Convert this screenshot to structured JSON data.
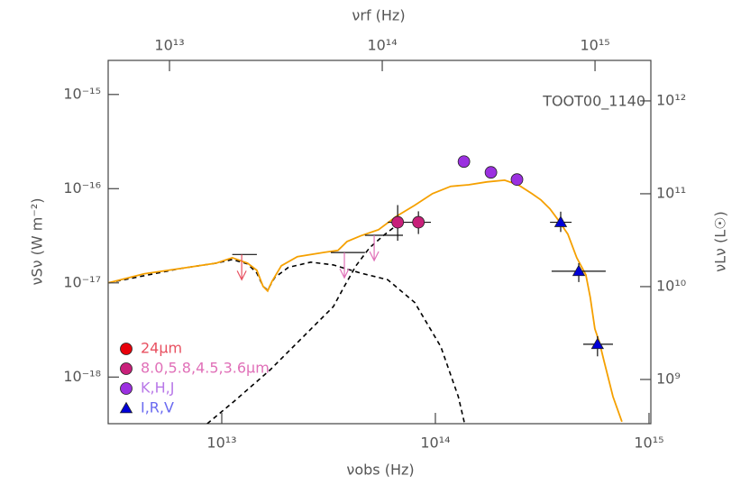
{
  "chart_data": {
    "type": "scatter",
    "annotation": "TOOT00_1140",
    "xlabel": "νobs (Hz)",
    "ylabel": "νSν (W m⁻²)",
    "y2label": "νLν (L☉)",
    "x2label": "νrf (Hz)",
    "xscale": "log",
    "yscale": "log",
    "xlim": [
      2940000000000.0,
      1020000000000000.0
    ],
    "xticks": [
      {
        "value": 10000000000000.0,
        "label": "10¹³"
      },
      {
        "value": 100000000000000.0,
        "label": "10¹⁴"
      },
      {
        "value": 1000000000000000.0,
        "label": "10¹⁵"
      }
    ],
    "ylim": [
      3.2e-19,
      2.3e-15
    ],
    "yticks": [
      {
        "value": 1e-18,
        "label": "10⁻¹⁸"
      },
      {
        "value": 1e-17,
        "label": "10⁻¹⁷"
      },
      {
        "value": 1e-16,
        "label": "10⁻¹⁶"
      },
      {
        "value": 1e-15,
        "label": "10⁻¹⁵"
      }
    ],
    "y2lim": [
      334000000.0,
      2730000000000.0
    ],
    "y2ticks": [
      {
        "value": 1000000000.0,
        "label": "10⁹"
      },
      {
        "value": 10000000000.0,
        "label": "10¹⁰"
      },
      {
        "value": 100000000000.0,
        "label": "10¹¹"
      },
      {
        "value": 1000000000000.0,
        "label": "10¹²"
      }
    ],
    "x2lim": [
      5150000000000.0,
      1830000000000000.0
    ],
    "x2ticks": [
      {
        "value": 10000000000000.0,
        "label": "10¹³"
      },
      {
        "value": 100000000000000.0,
        "label": "10¹⁴"
      },
      {
        "value": 1000000000000000.0,
        "label": "10¹⁵"
      }
    ],
    "series": [
      {
        "name": "24μm",
        "color": "#e8000b",
        "label_color": "#e85060",
        "marker": "circle",
        "x": [
          12400000000000.0
        ],
        "values": [
          2e-17
        ],
        "limits": [
          true
        ],
        "x_low": [
          11200000000000.0
        ],
        "x_high": [
          14600000000000.0
        ],
        "y_low": [
          null
        ],
        "y_high": [
          null
        ]
      },
      {
        "name": "8.0,5.8,4.5,3.6μm",
        "color": "#c8207a",
        "label_color": "#e070b8",
        "marker": "circle",
        "x": [
          37500000000000.0,
          51700000000000.0,
          66600000000000.0,
          83300000000000.0
        ],
        "values": [
          2.1e-17,
          3.2e-17,
          4.4e-17,
          4.4e-17
        ],
        "limits": [
          true,
          true,
          false,
          false
        ],
        "x_low": [
          32400000000000.0,
          46800000000000.0,
          59900000000000.0,
          76200000000000.0
        ],
        "x_high": [
          46800000000000.0,
          70500000000000.0,
          76200000000000.0,
          95300000000000.0
        ],
        "y_low": [
          null,
          null,
          2.8e-17,
          3.3e-17
        ],
        "y_high": [
          null,
          null,
          6.7e-17,
          5.75e-17
        ]
      },
      {
        "name": "K,H,J",
        "color": "#9b30e0",
        "label_color": "#b878e8",
        "marker": "circle",
        "x": [
          136000000000000.0,
          182000000000000.0,
          241000000000000.0
        ],
        "values": [
          1.94e-16,
          1.49e-16,
          1.25e-16
        ],
        "limits": [
          false,
          false,
          false
        ],
        "x_low": [
          null,
          null,
          null
        ],
        "x_high": [
          null,
          null,
          null
        ],
        "y_low": [
          null,
          null,
          null
        ],
        "y_high": [
          null,
          null,
          null
        ]
      },
      {
        "name": "I,R,V",
        "color": "#0000d8",
        "label_color": "#6a6af0",
        "marker": "triangle",
        "x": [
          386000000000000.0,
          469000000000000.0,
          574000000000000.0
        ],
        "values": [
          4.4e-17,
          1.33e-17,
          2.23e-18
        ],
        "limits": [
          false,
          false,
          false
        ],
        "x_low": [
          344000000000000.0,
          350000000000000.0,
          492000000000000.0
        ],
        "x_high": [
          434000000000000.0,
          627000000000000.0,
          678000000000000.0
        ],
        "y_low": [
          3.47e-17,
          1.02e-17,
          1.66e-18
        ],
        "y_high": [
          5.7e-17,
          1.62e-17,
          2.72e-18
        ]
      }
    ],
    "curves": [
      {
        "color": "#000000",
        "style": "dashed",
        "x": [
          2940000000000.0,
          6390000000000.0,
          9430000000000.0,
          11200000000000.0,
          13200000000000.0,
          14600000000000.0,
          15600000000000.0,
          16400000000000.0,
          17700000000000.0,
          20500000000000.0,
          26100000000000.0,
          33300000000000.0,
          44600000000000.0,
          59800000000000.0,
          80000000000000.0,
          106000000000000.0,
          128000000000000.0,
          137000000000000.0
        ],
        "values": [
          1e-17,
          1.42e-17,
          1.62e-17,
          1.77e-17,
          1.59e-17,
          1.27e-17,
          9.2e-18,
          8.4e-18,
          1.14e-17,
          1.46e-17,
          1.66e-17,
          1.55e-17,
          1.27e-17,
          1.08e-17,
          6.2e-18,
          2.1e-18,
          6.2e-19,
          3.2e-19
        ]
      },
      {
        "color": "#000000",
        "style": "dashed",
        "x": [
          8550000000000.0,
          11500000000000.0,
          16900000000000.0,
          24900000000000.0,
          33300000000000.0,
          37500000000000.0,
          42500000000000.0,
          49200000000000.0,
          56900000000000.0,
          65800000000000.0
        ],
        "values": [
          3.2e-19,
          5.6e-19,
          1.2e-18,
          2.9e-18,
          5.6e-18,
          9.2e-18,
          1.52e-17,
          2.36e-17,
          3.15e-17,
          4.1e-17
        ]
      },
      {
        "color": "#f5a000",
        "style": "solid",
        "x": [
          2940000000000.0,
          4330000000000.0,
          6390000000000.0,
          9430000000000.0,
          11200000000000.0,
          13200000000000.0,
          14600000000000.0,
          15600000000000.0,
          16400000000000.0,
          17200000000000.0,
          19000000000000.0,
          22600000000000.0,
          30300000000000.0,
          35000000000000.0,
          38600000000000.0,
          44600000000000.0,
          54200000000000.0,
          65800000000000.0,
          80000000000000.0,
          97000000000000.0,
          118000000000000.0,
          143000000000000.0,
          174000000000000.0,
          211000000000000.0,
          244000000000000.0,
          283000000000000.0,
          312000000000000.0,
          344000000000000.0,
          378000000000000.0,
          417000000000000.0,
          459000000000000.0,
          506000000000000.0,
          531000000000000.0,
          558000000000000.0,
          586000000000000.0,
          615000000000000.0,
          678000000000000.0,
          747000000000000.0
        ],
        "values": [
          1e-17,
          1.25e-17,
          1.42e-17,
          1.62e-17,
          1.85e-17,
          1.62e-17,
          1.36e-17,
          9.2e-18,
          8.2e-18,
          1.04e-17,
          1.52e-17,
          1.9e-17,
          2.11e-17,
          2.21e-17,
          2.75e-17,
          3.15e-17,
          3.67e-17,
          5.1e-17,
          6.65e-17,
          8.85e-17,
          1.06e-16,
          1.1e-16,
          1.18e-16,
          1.23e-16,
          1.1e-16,
          8.85e-17,
          7.6e-17,
          6.1e-17,
          4.57e-17,
          3.29e-17,
          1.85e-17,
          1.22e-17,
          7e-18,
          3.25e-18,
          2.33e-18,
          1.5e-18,
          6.2e-19,
          3.36e-19
        ]
      }
    ]
  }
}
